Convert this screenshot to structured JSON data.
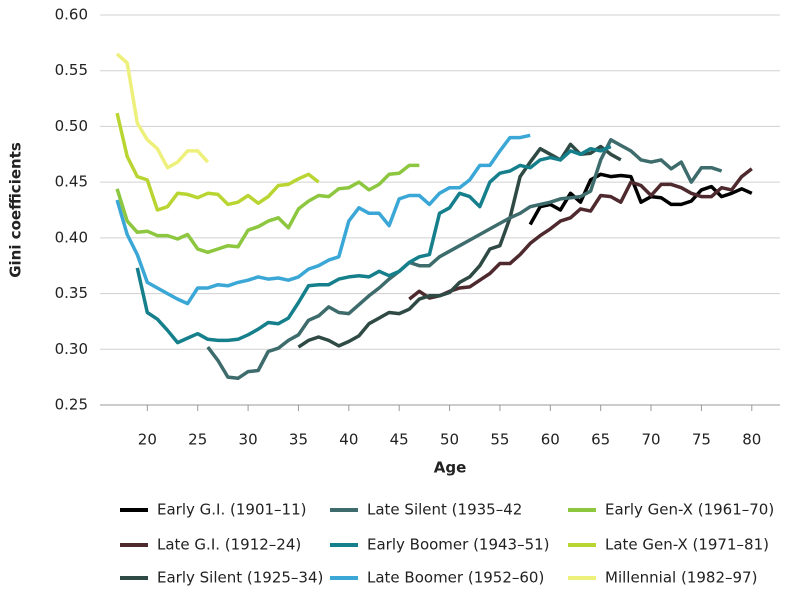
{
  "chart_data": {
    "type": "line",
    "xlabel": "Age",
    "ylabel": "Gini coefficients",
    "xlim": [
      15.3,
      82.8
    ],
    "ylim": [
      0.25,
      0.6
    ],
    "xticks": [
      20,
      25,
      30,
      35,
      40,
      45,
      50,
      55,
      60,
      65,
      70,
      75,
      80
    ],
    "yticks": [
      {
        "value": 0.25,
        "label": "0.25"
      },
      {
        "value": 0.3,
        "label": "0.30"
      },
      {
        "value": 0.35,
        "label": "0.35"
      },
      {
        "value": 0.4,
        "label": "0.40"
      },
      {
        "value": 0.45,
        "label": "0.45"
      },
      {
        "value": 0.5,
        "label": "0.50"
      },
      {
        "value": 0.55,
        "label": "0.55"
      },
      {
        "value": 0.6,
        "label": "0.60"
      }
    ],
    "grid": true,
    "legend": "bottom",
    "series": [
      {
        "name": "Early G.I. (1901–11)",
        "color": "#000000",
        "x": [
          58,
          59,
          60,
          61,
          62,
          63,
          64,
          65,
          66,
          67,
          68,
          69,
          70,
          71,
          72,
          73,
          74,
          75,
          76,
          77,
          78,
          79,
          80
        ],
        "values": [
          0.412,
          0.428,
          0.43,
          0.425,
          0.44,
          0.432,
          0.452,
          0.457,
          0.455,
          0.456,
          0.455,
          0.432,
          0.437,
          0.436,
          0.43,
          0.43,
          0.433,
          0.443,
          0.446,
          0.437,
          0.44,
          0.444,
          0.44
        ]
      },
      {
        "name": "Late G.I. (1912–24)",
        "color": "#4e2a2f",
        "x": [
          46,
          47,
          48,
          49,
          50,
          51,
          52,
          53,
          54,
          55,
          56,
          57,
          58,
          59,
          60,
          61,
          62,
          63,
          64,
          65,
          66,
          67,
          68,
          69,
          70,
          71,
          72,
          73,
          74,
          75,
          76,
          77,
          78,
          79,
          80
        ],
        "values": [
          0.345,
          0.352,
          0.346,
          0.348,
          0.352,
          0.355,
          0.356,
          0.362,
          0.368,
          0.377,
          0.377,
          0.385,
          0.395,
          0.402,
          0.408,
          0.415,
          0.418,
          0.426,
          0.424,
          0.438,
          0.437,
          0.432,
          0.45,
          0.447,
          0.438,
          0.448,
          0.448,
          0.445,
          0.44,
          0.437,
          0.437,
          0.445,
          0.443,
          0.455,
          0.462
        ]
      },
      {
        "name": "Early Silent (1925–34)",
        "color": "#2f4a44",
        "x": [
          35,
          36,
          37,
          38,
          39,
          40,
          41,
          42,
          43,
          44,
          45,
          46,
          47,
          48,
          49,
          50,
          51,
          52,
          53,
          54,
          55,
          56,
          57,
          58,
          59,
          60,
          61,
          62,
          63,
          64,
          65,
          66,
          67
        ],
        "values": [
          0.302,
          0.308,
          0.311,
          0.308,
          0.303,
          0.307,
          0.312,
          0.323,
          0.328,
          0.333,
          0.332,
          0.336,
          0.345,
          0.348,
          0.348,
          0.351,
          0.36,
          0.365,
          0.375,
          0.39,
          0.393,
          0.418,
          0.455,
          0.468,
          0.48,
          0.475,
          0.47,
          0.484,
          0.475,
          0.476,
          0.482,
          0.475,
          0.47
        ]
      },
      {
        "name": "Late Silent (1935–42",
        "color": "#3e6b6b",
        "x": [
          26,
          27,
          28,
          29,
          30,
          31,
          32,
          33,
          34,
          35,
          36,
          37,
          38,
          39,
          40,
          41,
          42,
          43,
          44,
          45,
          46,
          47,
          48,
          49,
          50,
          51,
          52,
          53,
          54,
          55,
          56,
          57,
          58,
          59,
          60,
          61,
          62,
          63,
          64,
          65,
          66,
          67,
          68,
          69,
          70,
          71,
          72,
          73,
          74,
          75,
          76,
          77
        ],
        "values": [
          0.302,
          0.29,
          0.275,
          0.274,
          0.28,
          0.281,
          0.298,
          0.301,
          0.308,
          0.313,
          0.326,
          0.33,
          0.338,
          0.333,
          0.332,
          0.34,
          0.348,
          0.355,
          0.363,
          0.37,
          0.378,
          0.375,
          0.375,
          0.383,
          0.388,
          0.393,
          0.398,
          0.403,
          0.408,
          0.413,
          0.418,
          0.422,
          0.428,
          0.43,
          0.432,
          0.435,
          0.436,
          0.437,
          0.442,
          0.47,
          0.488,
          0.483,
          0.478,
          0.47,
          0.468,
          0.47,
          0.462,
          0.468,
          0.45,
          0.463,
          0.463,
          0.46
        ]
      },
      {
        "name": "Early Boomer (1943–51)",
        "color": "#15808c",
        "x": [
          19,
          20,
          21,
          22,
          23,
          24,
          25,
          26,
          27,
          28,
          29,
          30,
          31,
          32,
          33,
          34,
          35,
          36,
          37,
          38,
          39,
          40,
          41,
          42,
          43,
          44,
          45,
          46,
          47,
          48,
          49,
          50,
          51,
          52,
          53,
          54,
          55,
          56,
          57,
          58,
          59,
          60,
          61,
          62,
          63,
          64,
          65,
          66
        ],
        "values": [
          0.373,
          0.333,
          0.327,
          0.317,
          0.306,
          0.31,
          0.314,
          0.309,
          0.308,
          0.308,
          0.309,
          0.313,
          0.318,
          0.324,
          0.323,
          0.328,
          0.342,
          0.357,
          0.358,
          0.358,
          0.363,
          0.365,
          0.366,
          0.365,
          0.37,
          0.366,
          0.37,
          0.378,
          0.383,
          0.385,
          0.422,
          0.427,
          0.44,
          0.437,
          0.428,
          0.45,
          0.458,
          0.46,
          0.465,
          0.463,
          0.47,
          0.472,
          0.47,
          0.478,
          0.475,
          0.48,
          0.478,
          0.482
        ]
      },
      {
        "name": "Late Boomer (1952–60)",
        "color": "#3ba7d6",
        "x": [
          17,
          18,
          19,
          20,
          21,
          22,
          23,
          24,
          25,
          26,
          27,
          28,
          29,
          30,
          31,
          32,
          33,
          34,
          35,
          36,
          37,
          38,
          39,
          40,
          41,
          42,
          43,
          44,
          45,
          46,
          47,
          48,
          49,
          50,
          51,
          52,
          53,
          54,
          55,
          56,
          57,
          58
        ],
        "values": [
          0.434,
          0.403,
          0.385,
          0.36,
          0.355,
          0.35,
          0.345,
          0.341,
          0.355,
          0.355,
          0.358,
          0.357,
          0.36,
          0.362,
          0.365,
          0.363,
          0.364,
          0.362,
          0.365,
          0.372,
          0.375,
          0.38,
          0.383,
          0.415,
          0.427,
          0.422,
          0.422,
          0.411,
          0.435,
          0.438,
          0.438,
          0.43,
          0.44,
          0.445,
          0.445,
          0.452,
          0.465,
          0.465,
          0.478,
          0.49,
          0.49,
          0.492
        ]
      },
      {
        "name": "Early Gen-X (1961–70)",
        "color": "#8dc63f",
        "x": [
          17,
          18,
          19,
          20,
          21,
          22,
          23,
          24,
          25,
          26,
          27,
          28,
          29,
          30,
          31,
          32,
          33,
          34,
          35,
          36,
          37,
          38,
          39,
          40,
          41,
          42,
          43,
          44,
          45,
          46,
          47
        ],
        "values": [
          0.444,
          0.415,
          0.405,
          0.406,
          0.402,
          0.402,
          0.399,
          0.403,
          0.39,
          0.387,
          0.39,
          0.393,
          0.392,
          0.407,
          0.41,
          0.415,
          0.418,
          0.409,
          0.426,
          0.433,
          0.438,
          0.437,
          0.444,
          0.445,
          0.45,
          0.443,
          0.448,
          0.457,
          0.458,
          0.465,
          0.465
        ]
      },
      {
        "name": "Late Gen-X (1971–81)",
        "color": "#b9d532",
        "x": [
          17,
          18,
          19,
          20,
          21,
          22,
          23,
          24,
          25,
          26,
          27,
          28,
          29,
          30,
          31,
          32,
          33,
          34,
          35,
          36,
          37
        ],
        "values": [
          0.512,
          0.473,
          0.455,
          0.452,
          0.425,
          0.428,
          0.44,
          0.439,
          0.436,
          0.44,
          0.439,
          0.43,
          0.432,
          0.438,
          0.431,
          0.437,
          0.447,
          0.448,
          0.453,
          0.457,
          0.45
        ]
      },
      {
        "name": "Millennial (1982–97)",
        "color": "#eef07c",
        "x": [
          17,
          18,
          19,
          20,
          21,
          22,
          23,
          24,
          25,
          26
        ],
        "values": [
          0.565,
          0.557,
          0.503,
          0.488,
          0.48,
          0.463,
          0.468,
          0.478,
          0.478,
          0.468
        ]
      }
    ]
  }
}
